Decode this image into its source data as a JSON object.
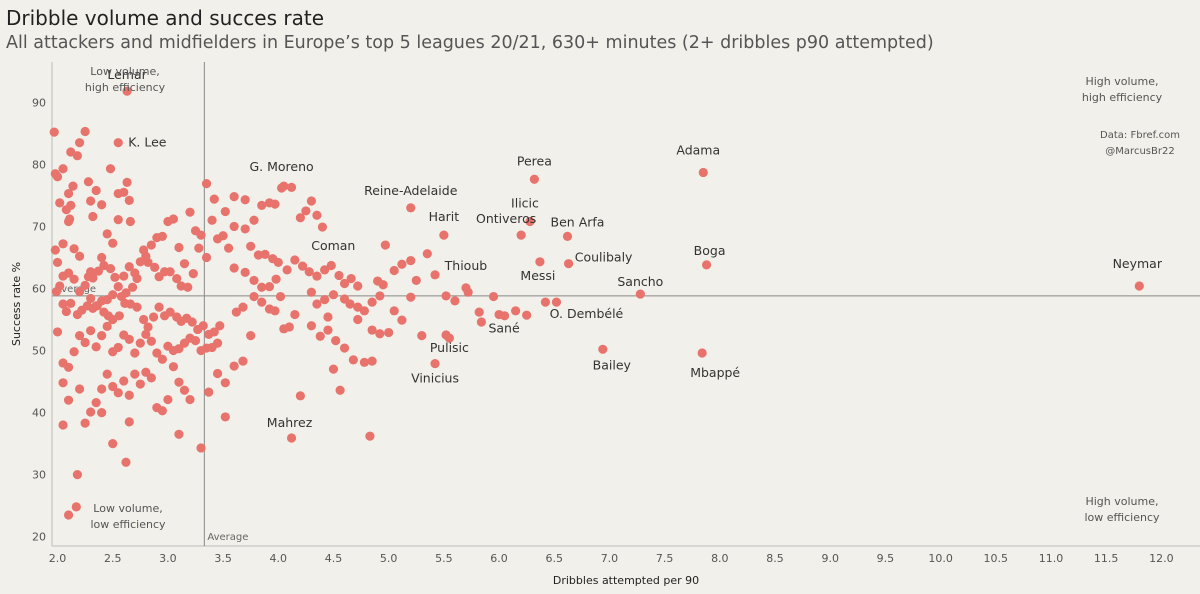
{
  "header": {
    "title": "Dribble volume and succes rate",
    "subtitle": "All attackers and midfielders in Europe’s top 5 leagues 20/21, 630+ minutes (2+ dribbles p90 attempted)"
  },
  "credits": {
    "source": "Data: Fbref.com",
    "handle": "@MarcusBr22"
  },
  "chart_data": {
    "type": "scatter",
    "xlabel": "Dribbles attempted per 90",
    "ylabel": "Success rate %",
    "xlim": [
      1.95,
      12.35
    ],
    "ylim": [
      18.5,
      96.5
    ],
    "xticks": [
      2.0,
      2.5,
      3.0,
      3.5,
      4.0,
      4.5,
      5.0,
      5.5,
      6.0,
      6.5,
      7.0,
      7.5,
      8.0,
      8.5,
      9.0,
      9.5,
      10.0,
      10.5,
      11.0,
      11.5,
      12.0
    ],
    "xtick_labels": [
      "2.0",
      "2.5",
      "3.0",
      "3.5",
      "4.0",
      "4.5",
      "5.0",
      "5.5",
      "6.0",
      "6.5",
      "7.0",
      "7.5",
      "8.0",
      "8.5",
      "9.0",
      "9.5",
      "10.0",
      "10.5",
      "11.0",
      "11.5",
      "12.0"
    ],
    "yticks": [
      20,
      30,
      40,
      50,
      60,
      70,
      80,
      90
    ],
    "ytick_labels": [
      "20",
      "30",
      "40",
      "50",
      "60",
      "70",
      "80",
      "90"
    ],
    "grid": false,
    "point_color": "#e8736c",
    "reference_lines": [
      {
        "axis": "x",
        "value": 3.33,
        "label": "Average"
      },
      {
        "axis": "y",
        "value": 58.8,
        "label": "Average"
      }
    ],
    "quadrant_labels": [
      {
        "position": "top-left",
        "lines": [
          "Low volume,",
          "high efficiency"
        ]
      },
      {
        "position": "top-right",
        "lines": [
          "High volume,",
          "high efficiency"
        ]
      },
      {
        "position": "bottom-left",
        "lines": [
          "Low volume,",
          "low efficiency"
        ]
      },
      {
        "position": "bottom-right",
        "lines": [
          "High volume,",
          "low efficiency"
        ]
      }
    ],
    "labeled_points": [
      {
        "name": "Lemar",
        "x": 2.63,
        "y": 91.8
      },
      {
        "name": "K. Lee",
        "x": 2.55,
        "y": 83.5
      },
      {
        "name": "G. Moreno",
        "x": 4.03,
        "y": 76.2
      },
      {
        "name": "Reine-Adelaide",
        "x": 5.2,
        "y": 73.0
      },
      {
        "name": "Coman",
        "x": 4.97,
        "y": 67.0
      },
      {
        "name": "Harit",
        "x": 5.5,
        "y": 68.6
      },
      {
        "name": "Ilicic",
        "x": 6.28,
        "y": 70.8
      },
      {
        "name": "Perea",
        "x": 6.32,
        "y": 77.6
      },
      {
        "name": "Adama",
        "x": 7.85,
        "y": 78.7
      },
      {
        "name": "Ben Arfa",
        "x": 6.62,
        "y": 68.4
      },
      {
        "name": "Ontiveros",
        "x": 6.2,
        "y": 68.6
      },
      {
        "name": "Coulibaly",
        "x": 6.63,
        "y": 64.0
      },
      {
        "name": "Messi",
        "x": 6.37,
        "y": 64.3
      },
      {
        "name": "Boga",
        "x": 7.88,
        "y": 63.8
      },
      {
        "name": "Thioub",
        "x": 5.7,
        "y": 60.1
      },
      {
        "name": "Sancho",
        "x": 7.28,
        "y": 59.1
      },
      {
        "name": "Neymar",
        "x": 11.8,
        "y": 60.4
      },
      {
        "name": "O. Dembélé",
        "x": 6.52,
        "y": 57.8
      },
      {
        "name": "Sané",
        "x": 6.0,
        "y": 55.8
      },
      {
        "name": "Pulisic",
        "x": 5.55,
        "y": 52.0
      },
      {
        "name": "Vinicius",
        "x": 5.42,
        "y": 47.9
      },
      {
        "name": "Bailey",
        "x": 6.94,
        "y": 50.2
      },
      {
        "name": "Mbappé",
        "x": 7.84,
        "y": 49.6
      },
      {
        "name": "Mahrez",
        "x": 4.12,
        "y": 35.9
      }
    ],
    "points": [
      [
        1.97,
        85.2
      ],
      [
        1.98,
        78.5
      ],
      [
        2.0,
        78.0
      ],
      [
        2.05,
        79.3
      ],
      [
        2.02,
        73.8
      ],
      [
        2.08,
        72.7
      ],
      [
        2.1,
        75.3
      ],
      [
        2.1,
        70.8
      ],
      [
        2.14,
        76.5
      ],
      [
        2.12,
        73.4
      ],
      [
        2.11,
        71.2
      ],
      [
        2.12,
        82.0
      ],
      [
        2.18,
        81.4
      ],
      [
        2.2,
        83.5
      ],
      [
        2.25,
        85.3
      ],
      [
        2.28,
        77.2
      ],
      [
        2.3,
        74.1
      ],
      [
        2.32,
        71.6
      ],
      [
        2.35,
        75.8
      ],
      [
        2.4,
        73.5
      ],
      [
        2.48,
        79.3
      ],
      [
        2.55,
        75.3
      ],
      [
        2.6,
        75.5
      ],
      [
        2.63,
        77.1
      ],
      [
        2.65,
        74.2
      ],
      [
        2.66,
        70.8
      ],
      [
        2.55,
        71.1
      ],
      [
        2.5,
        67.3
      ],
      [
        2.45,
        68.8
      ],
      [
        2.4,
        65.0
      ],
      [
        2.3,
        62.7
      ],
      [
        2.2,
        65.2
      ],
      [
        2.15,
        66.4
      ],
      [
        2.05,
        67.2
      ],
      [
        1.98,
        66.2
      ],
      [
        2.0,
        64.2
      ],
      [
        2.02,
        60.4
      ],
      [
        1.99,
        59.5
      ],
      [
        2.05,
        62.0
      ],
      [
        2.1,
        62.5
      ],
      [
        2.15,
        61.5
      ],
      [
        2.2,
        59.5
      ],
      [
        2.25,
        60.5
      ],
      [
        2.3,
        58.4
      ],
      [
        2.35,
        57.2
      ],
      [
        2.4,
        58.0
      ],
      [
        2.45,
        58.2
      ],
      [
        2.5,
        59.0
      ],
      [
        2.55,
        60.3
      ],
      [
        2.6,
        62.0
      ],
      [
        2.65,
        63.5
      ],
      [
        2.7,
        62.5
      ],
      [
        2.75,
        64.3
      ],
      [
        2.8,
        65.2
      ],
      [
        2.85,
        67.0
      ],
      [
        2.9,
        68.2
      ],
      [
        2.95,
        68.4
      ],
      [
        3.0,
        70.8
      ],
      [
        3.05,
        71.2
      ],
      [
        3.1,
        66.6
      ],
      [
        3.15,
        64.0
      ],
      [
        3.2,
        72.3
      ],
      [
        3.25,
        69.3
      ],
      [
        3.28,
        66.5
      ],
      [
        3.3,
        68.6
      ],
      [
        3.35,
        65.0
      ],
      [
        3.4,
        71.0
      ],
      [
        3.45,
        68.0
      ],
      [
        3.5,
        68.5
      ],
      [
        3.55,
        66.5
      ],
      [
        2.05,
        57.5
      ],
      [
        2.08,
        56.3
      ],
      [
        2.12,
        57.6
      ],
      [
        2.18,
        55.8
      ],
      [
        2.22,
        56.5
      ],
      [
        2.27,
        57.2
      ],
      [
        2.32,
        56.8
      ],
      [
        2.36,
        57.2
      ],
      [
        2.42,
        56.2
      ],
      [
        2.46,
        55.6
      ],
      [
        2.5,
        55.0
      ],
      [
        2.56,
        55.6
      ],
      [
        2.61,
        57.6
      ],
      [
        2.66,
        57.5
      ],
      [
        2.72,
        57.0
      ],
      [
        2.78,
        55.0
      ],
      [
        2.82,
        53.8
      ],
      [
        2.87,
        55.4
      ],
      [
        2.92,
        57.0
      ],
      [
        2.97,
        55.6
      ],
      [
        3.02,
        56.2
      ],
      [
        3.08,
        55.4
      ],
      [
        3.12,
        54.7
      ],
      [
        3.17,
        55.2
      ],
      [
        3.22,
        54.6
      ],
      [
        3.27,
        53.4
      ],
      [
        3.32,
        54.0
      ],
      [
        3.37,
        52.6
      ],
      [
        3.42,
        53.0
      ],
      [
        3.47,
        54.0
      ],
      [
        2.0,
        53.0
      ],
      [
        2.05,
        48.0
      ],
      [
        2.1,
        47.3
      ],
      [
        2.15,
        49.8
      ],
      [
        2.2,
        52.4
      ],
      [
        2.25,
        51.3
      ],
      [
        2.3,
        53.2
      ],
      [
        2.35,
        50.6
      ],
      [
        2.4,
        52.4
      ],
      [
        2.45,
        53.9
      ],
      [
        2.5,
        49.8
      ],
      [
        2.55,
        50.5
      ],
      [
        2.6,
        52.5
      ],
      [
        2.65,
        51.8
      ],
      [
        2.7,
        49.6
      ],
      [
        2.75,
        51.2
      ],
      [
        2.8,
        52.6
      ],
      [
        2.85,
        51.5
      ],
      [
        2.9,
        49.6
      ],
      [
        2.95,
        48.6
      ],
      [
        3.0,
        50.7
      ],
      [
        3.05,
        50.0
      ],
      [
        3.1,
        50.3
      ],
      [
        3.15,
        51.2
      ],
      [
        3.2,
        52.0
      ],
      [
        3.25,
        51.6
      ],
      [
        3.3,
        50.0
      ],
      [
        3.35,
        50.4
      ],
      [
        3.4,
        50.5
      ],
      [
        3.45,
        51.2
      ],
      [
        2.05,
        44.8
      ],
      [
        2.1,
        42.0
      ],
      [
        2.2,
        43.8
      ],
      [
        2.25,
        38.3
      ],
      [
        2.3,
        40.1
      ],
      [
        2.35,
        41.6
      ],
      [
        2.4,
        43.8
      ],
      [
        2.45,
        46.2
      ],
      [
        2.5,
        44.2
      ],
      [
        2.55,
        43.2
      ],
      [
        2.6,
        45.1
      ],
      [
        2.65,
        42.8
      ],
      [
        2.7,
        46.2
      ],
      [
        2.75,
        44.6
      ],
      [
        2.8,
        46.5
      ],
      [
        2.85,
        45.6
      ],
      [
        2.9,
        40.8
      ],
      [
        2.95,
        40.3
      ],
      [
        3.0,
        42.1
      ],
      [
        3.05,
        47.4
      ],
      [
        3.1,
        44.9
      ],
      [
        3.15,
        43.6
      ],
      [
        3.2,
        42.1
      ],
      [
        2.05,
        38.0
      ],
      [
        2.4,
        40.0
      ],
      [
        2.5,
        35.0
      ],
      [
        2.62,
        32.0
      ],
      [
        2.65,
        38.5
      ],
      [
        3.1,
        36.5
      ],
      [
        2.18,
        30.0
      ],
      [
        2.1,
        23.5
      ],
      [
        2.17,
        24.8
      ],
      [
        3.3,
        34.3
      ],
      [
        3.37,
        43.3
      ],
      [
        3.45,
        46.3
      ],
      [
        3.52,
        44.8
      ],
      [
        3.52,
        39.3
      ],
      [
        3.6,
        47.5
      ],
      [
        3.68,
        48.3
      ],
      [
        3.75,
        52.4
      ],
      [
        3.62,
        56.2
      ],
      [
        3.68,
        57.0
      ],
      [
        3.78,
        58.7
      ],
      [
        3.85,
        57.8
      ],
      [
        3.92,
        56.7
      ],
      [
        3.97,
        56.4
      ],
      [
        4.02,
        58.7
      ],
      [
        4.05,
        53.5
      ],
      [
        4.1,
        53.8
      ],
      [
        4.15,
        55.8
      ],
      [
        3.35,
        76.9
      ],
      [
        3.42,
        74.4
      ],
      [
        3.52,
        72.4
      ],
      [
        3.6,
        74.8
      ],
      [
        3.7,
        74.3
      ],
      [
        3.78,
        71.0
      ],
      [
        3.85,
        73.4
      ],
      [
        3.92,
        73.8
      ],
      [
        3.97,
        73.6
      ],
      [
        4.05,
        76.5
      ],
      [
        4.12,
        76.3
      ],
      [
        4.2,
        71.4
      ],
      [
        4.25,
        72.5
      ],
      [
        4.3,
        74.1
      ],
      [
        4.35,
        71.8
      ],
      [
        4.4,
        69.9
      ],
      [
        3.6,
        70.0
      ],
      [
        3.7,
        69.6
      ],
      [
        3.75,
        66.8
      ],
      [
        3.82,
        65.4
      ],
      [
        3.88,
        65.5
      ],
      [
        3.95,
        64.8
      ],
      [
        4.0,
        64.2
      ],
      [
        4.08,
        63.0
      ],
      [
        4.15,
        64.6
      ],
      [
        4.22,
        63.6
      ],
      [
        4.28,
        62.7
      ],
      [
        4.35,
        62.0
      ],
      [
        4.42,
        63.0
      ],
      [
        4.48,
        63.7
      ],
      [
        4.55,
        62.1
      ],
      [
        4.6,
        60.8
      ],
      [
        4.66,
        61.6
      ],
      [
        4.72,
        60.4
      ],
      [
        3.6,
        63.3
      ],
      [
        3.7,
        62.6
      ],
      [
        3.78,
        61.3
      ],
      [
        3.85,
        60.2
      ],
      [
        3.92,
        60.3
      ],
      [
        3.98,
        61.5
      ],
      [
        4.3,
        59.4
      ],
      [
        4.35,
        57.5
      ],
      [
        4.42,
        58.2
      ],
      [
        4.5,
        59.0
      ],
      [
        4.6,
        58.3
      ],
      [
        4.65,
        57.5
      ],
      [
        4.72,
        57.0
      ],
      [
        4.78,
        56.4
      ],
      [
        4.85,
        57.8
      ],
      [
        4.92,
        58.8
      ],
      [
        4.3,
        54.0
      ],
      [
        4.38,
        52.3
      ],
      [
        4.45,
        53.3
      ],
      [
        4.52,
        51.6
      ],
      [
        4.6,
        50.4
      ],
      [
        4.68,
        48.5
      ],
      [
        4.78,
        48.1
      ],
      [
        4.85,
        48.3
      ],
      [
        4.92,
        52.7
      ],
      [
        4.5,
        47.0
      ],
      [
        4.56,
        43.6
      ],
      [
        4.2,
        42.7
      ],
      [
        4.83,
        36.2
      ],
      [
        4.9,
        61.2
      ],
      [
        4.95,
        60.6
      ],
      [
        5.05,
        62.9
      ],
      [
        5.12,
        63.9
      ],
      [
        5.2,
        64.5
      ],
      [
        5.25,
        61.3
      ],
      [
        5.35,
        65.6
      ],
      [
        5.05,
        56.4
      ],
      [
        5.12,
        54.9
      ],
      [
        5.2,
        58.6
      ],
      [
        5.42,
        62.2
      ],
      [
        5.52,
        58.8
      ],
      [
        5.3,
        52.4
      ],
      [
        5.52,
        52.5
      ],
      [
        5.6,
        58.0
      ],
      [
        5.72,
        59.4
      ],
      [
        5.82,
        56.2
      ],
      [
        5.95,
        58.7
      ],
      [
        6.05,
        55.6
      ],
      [
        6.15,
        56.4
      ],
      [
        6.42,
        57.8
      ],
      [
        6.25,
        55.7
      ],
      [
        5.84,
        54.6
      ],
      [
        4.72,
        55.0
      ],
      [
        4.85,
        53.3
      ],
      [
        5.0,
        52.9
      ],
      [
        4.45,
        55.4
      ],
      [
        2.78,
        66.2
      ],
      [
        2.82,
        64.2
      ],
      [
        2.88,
        63.4
      ],
      [
        2.92,
        61.9
      ],
      [
        2.97,
        62.7
      ],
      [
        3.02,
        62.7
      ],
      [
        3.08,
        61.6
      ],
      [
        3.12,
        60.4
      ],
      [
        3.18,
        60.2
      ],
      [
        3.23,
        62.4
      ],
      [
        2.72,
        61.6
      ],
      [
        2.68,
        60.2
      ],
      [
        2.62,
        59.3
      ],
      [
        2.58,
        58.7
      ],
      [
        2.52,
        61.8
      ],
      [
        2.48,
        63.2
      ],
      [
        2.42,
        63.7
      ],
      [
        2.37,
        62.8
      ],
      [
        2.32,
        61.7
      ],
      [
        2.28,
        61.9
      ]
    ]
  }
}
